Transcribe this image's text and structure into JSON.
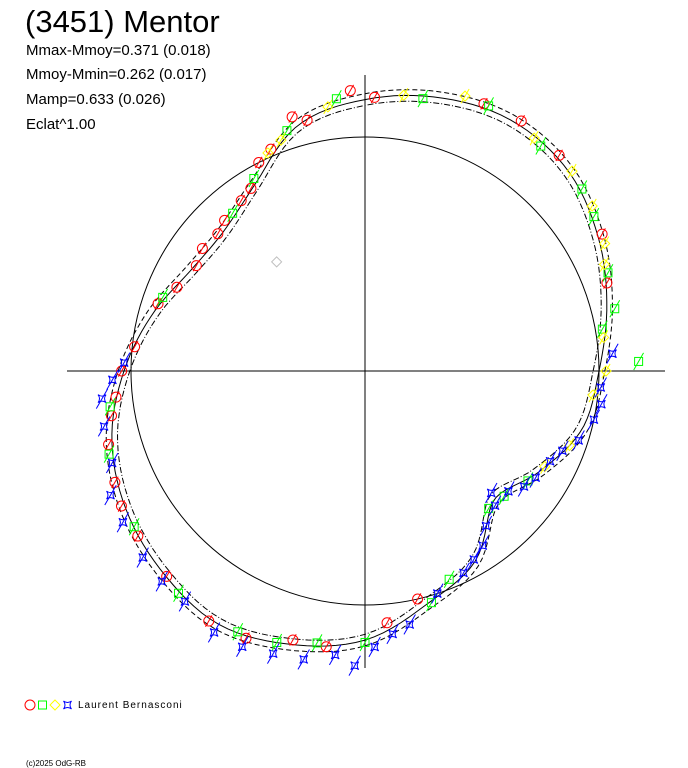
{
  "chart_data": {
    "type": "scatter",
    "subtype": "polar-lightcurve",
    "title": "(3451) Mentor",
    "stats": [
      "Mmax-Mmoy=0.371 (0.018)",
      "Mmoy-Mmin=0.262 (0.017)",
      "Mamp=0.633 (0.026)",
      "Eclat^1.00"
    ],
    "reference_circle_radius": 1.0,
    "fit_curve": {
      "angles_deg": [
        0,
        15,
        30,
        45,
        60,
        75,
        90,
        105,
        120,
        135,
        150,
        165,
        180,
        195,
        210,
        225,
        240,
        255,
        270,
        285,
        300,
        315,
        330,
        345
      ],
      "radius": [
        1.0,
        1.07,
        1.15,
        1.22,
        1.24,
        1.21,
        1.16,
        1.09,
        0.93,
        0.85,
        0.86,
        0.94,
        1.03,
        1.12,
        1.18,
        1.22,
        1.25,
        1.21,
        1.15,
        1.03,
        0.94,
        0.78,
        0.86,
        0.96
      ],
      "band": 0.025
    },
    "series": [
      {
        "name": "red-circle",
        "marker": "circle",
        "color": "#ff0000",
        "err": 0.04,
        "points": [
          [
            48,
            1.24
          ],
          [
            58,
            1.26
          ],
          [
            66,
            1.25
          ],
          [
            88,
            1.17
          ],
          [
            93,
            1.2
          ],
          [
            103,
            1.1
          ],
          [
            106,
            1.13
          ],
          [
            113,
            1.03
          ],
          [
            117,
            1.0
          ],
          [
            122,
            0.92
          ],
          [
            126,
            0.9
          ],
          [
            133,
            0.88
          ],
          [
            137,
            0.86
          ],
          [
            143,
            0.87
          ],
          [
            148,
            0.85
          ],
          [
            156,
            0.88
          ],
          [
            162,
            0.93
          ],
          [
            174,
            0.99
          ],
          [
            180,
            1.04
          ],
          [
            186,
            1.07
          ],
          [
            190,
            1.1
          ],
          [
            196,
            1.14
          ],
          [
            204,
            1.17
          ],
          [
            209,
            1.19
          ],
          [
            216,
            1.2
          ],
          [
            226,
            1.22
          ],
          [
            238,
            1.26
          ],
          [
            246,
            1.25
          ],
          [
            255,
            1.19
          ],
          [
            262,
            1.19
          ],
          [
            275,
            1.08
          ],
          [
            283,
            1.0
          ],
          [
            30,
            1.17
          ],
          [
            20,
            1.1
          ]
        ]
      },
      {
        "name": "green-square",
        "marker": "square",
        "color": "#00ff00",
        "err": 0.06,
        "points": [
          [
            10,
            1.03
          ],
          [
            14,
            1.1
          ],
          [
            22,
            1.12
          ],
          [
            34,
            1.18
          ],
          [
            40,
            1.21
          ],
          [
            52,
            1.22
          ],
          [
            65,
            1.25
          ],
          [
            78,
            1.19
          ],
          [
            96,
            1.17
          ],
          [
            108,
            1.08
          ],
          [
            120,
            0.95
          ],
          [
            130,
            0.88
          ],
          [
            160,
            0.92
          ],
          [
            188,
            1.1
          ],
          [
            198,
            1.15
          ],
          [
            214,
            1.19
          ],
          [
            230,
            1.24
          ],
          [
            244,
            1.24
          ],
          [
            252,
            1.22
          ],
          [
            260,
            1.18
          ],
          [
            270,
            1.16
          ],
          [
            286,
            1.03
          ],
          [
            292,
            0.96
          ],
          [
            312,
            0.79
          ],
          [
            318,
            0.8
          ],
          [
            326,
            0.84
          ],
          [
            2,
            1.17
          ]
        ]
      },
      {
        "name": "yellow-diamond",
        "marker": "diamond",
        "color": "#ffff00",
        "err": 0.05,
        "points": [
          [
            24,
            1.12
          ],
          [
            28,
            1.16
          ],
          [
            36,
            1.2
          ],
          [
            44,
            1.23
          ],
          [
            54,
            1.23
          ],
          [
            70,
            1.25
          ],
          [
            82,
            1.19
          ],
          [
            98,
            1.14
          ],
          [
            110,
            1.05
          ],
          [
            114,
            1.02
          ],
          [
            332,
            0.87
          ],
          [
            340,
            0.93
          ],
          [
            354,
            0.98
          ],
          [
            0,
            1.03
          ],
          [
            8,
            1.03
          ]
        ]
      },
      {
        "name": "blue-star",
        "marker": "star",
        "color": "#0000ff",
        "err": 0.07,
        "points": [
          [
            178,
            1.03
          ],
          [
            182,
            1.08
          ],
          [
            186,
            1.13
          ],
          [
            192,
            1.14
          ],
          [
            200,
            1.15
          ],
          [
            206,
            1.21
          ],
          [
            212,
            1.22
          ],
          [
            220,
            1.24
          ],
          [
            226,
            1.25
          ],
          [
            232,
            1.25
          ],
          [
            240,
            1.29
          ],
          [
            246,
            1.29
          ],
          [
            252,
            1.27
          ],
          [
            258,
            1.26
          ],
          [
            264,
            1.22
          ],
          [
            268,
            1.26
          ],
          [
            272,
            1.18
          ],
          [
            276,
            1.13
          ],
          [
            280,
            1.1
          ],
          [
            288,
            1.0
          ],
          [
            296,
            0.96
          ],
          [
            300,
            0.93
          ],
          [
            304,
            0.9
          ],
          [
            308,
            0.84
          ],
          [
            314,
            0.8
          ],
          [
            316,
            0.75
          ],
          [
            320,
            0.8
          ],
          [
            324,
            0.84
          ],
          [
            328,
            0.86
          ],
          [
            334,
            0.88
          ],
          [
            338,
            0.91
          ],
          [
            342,
            0.96
          ],
          [
            348,
            1.0
          ],
          [
            352,
            1.02
          ],
          [
            356,
            1.01
          ],
          [
            4,
            1.06
          ]
        ]
      },
      {
        "name": "grey-outlier",
        "marker": "diamond",
        "color": "#c0c0c0",
        "err": 0,
        "points": [
          [
            129,
            0.6
          ]
        ]
      }
    ],
    "legend": {
      "markers": [
        "circle",
        "square",
        "diamond",
        "star"
      ],
      "label": "Laurent Bernasconi",
      "placement": "bottom-left"
    },
    "copyright": "(c)2025 OdG-RB"
  }
}
